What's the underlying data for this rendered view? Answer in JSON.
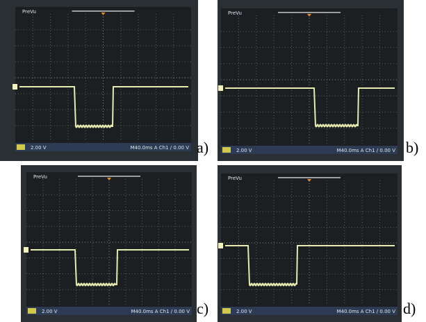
{
  "panels": [
    {
      "label": "a)",
      "screen": {
        "mode": "PreVu",
        "ch1_scale": "2.00 V",
        "timebase": "M40.0ms A Ch1 / 0.00 V"
      }
    },
    {
      "label": "b)",
      "screen": {
        "mode": "PreVu",
        "ch1_scale": "2.00 V",
        "timebase": "M40.0ms A Ch1 / 0.00 V"
      }
    },
    {
      "label": "c)",
      "screen": {
        "mode": "PreVu",
        "ch1_scale": "2.00 V",
        "timebase": "M40.0ms A Ch1 / 0.00 V"
      }
    },
    {
      "label": "d)",
      "screen": {
        "mode": "PreVu",
        "ch1_scale": "2.00 V",
        "timebase": "M40.0ms A Ch1 / 0.00 V"
      }
    }
  ]
}
